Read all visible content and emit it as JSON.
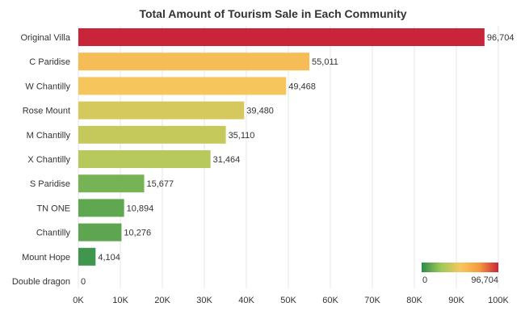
{
  "chart_data": {
    "type": "bar",
    "orientation": "horizontal",
    "title": "Total Amount of  Tourism Sale in Each Community",
    "categories": [
      "Original Villa",
      "C Paridise",
      "W Chantilly",
      "Rose Mount",
      "M Chantilly",
      "X Chantilly",
      "S Paridise",
      "TN ONE",
      "Chantilly",
      "Mount Hope",
      "Double dragon"
    ],
    "values": [
      96704,
      55011,
      49468,
      39480,
      35110,
      31464,
      15677,
      10894,
      10276,
      4104,
      0
    ],
    "value_labels": [
      "96,704",
      "55,011",
      "49,468",
      "39,480",
      "35,110",
      "31,464",
      "15,677",
      "10,894",
      "10,276",
      "4,104",
      "0"
    ],
    "xlim": [
      0,
      100000
    ],
    "xticks": [
      0,
      10000,
      20000,
      30000,
      40000,
      50000,
      60000,
      70000,
      80000,
      90000,
      100000
    ],
    "xtick_labels": [
      "0K",
      "10K",
      "20K",
      "30K",
      "40K",
      "50K",
      "60K",
      "70K",
      "80K",
      "90K",
      "100K"
    ],
    "grid": "vertical",
    "color_scale": {
      "colors": [
        "#2e8b4a",
        "#9cc95a",
        "#f6c85f",
        "#f59c3c",
        "#c8253a"
      ],
      "min_label": "0",
      "max_label": "96,704",
      "placement": "bottom-right"
    }
  }
}
